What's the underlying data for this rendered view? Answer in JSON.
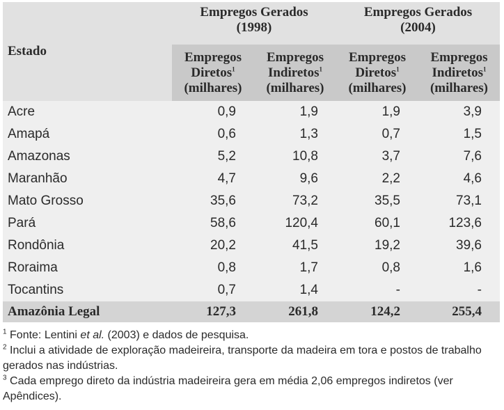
{
  "table": {
    "estado_header": "Estado",
    "group_headers": [
      {
        "line1": "Empregos Gerados",
        "line2": "(1998)"
      },
      {
        "line1": "Empregos Gerados",
        "line2": "(2004)"
      }
    ],
    "sub_headers": [
      {
        "line1": "Empregos",
        "line2": "Diretos",
        "sup": "1",
        "line3": "(milhares)"
      },
      {
        "line1": "Empregos",
        "line2": "Indiretos",
        "sup": "1",
        "line3": "(milhares)"
      },
      {
        "line1": "Empregos",
        "line2": "Diretos",
        "sup": "1",
        "line3": "(milhares)"
      },
      {
        "line1": "Empregos",
        "line2": "Indiretos",
        "sup": "1",
        "line3": "(milhares)"
      }
    ],
    "rows": [
      {
        "estado": "Acre",
        "d1998": "0,9",
        "i1998": "1,9",
        "d2004": "1,9",
        "i2004": "3,9"
      },
      {
        "estado": "Amapá",
        "d1998": "0,6",
        "i1998": "1,3",
        "d2004": "0,7",
        "i2004": "1,5"
      },
      {
        "estado": "Amazonas",
        "d1998": "5,2",
        "i1998": "10,8",
        "d2004": "3,7",
        "i2004": "7,6"
      },
      {
        "estado": "Maranhão",
        "d1998": "4,7",
        "i1998": "9,6",
        "d2004": "2,2",
        "i2004": "4,6"
      },
      {
        "estado": "Mato Grosso",
        "d1998": "35,6",
        "i1998": "73,2",
        "d2004": "35,5",
        "i2004": "73,1"
      },
      {
        "estado": "Pará",
        "d1998": "58,6",
        "i1998": "120,4",
        "d2004": "60,1",
        "i2004": "123,6"
      },
      {
        "estado": "Rondônia",
        "d1998": "20,2",
        "i1998": "41,5",
        "d2004": "19,2",
        "i2004": "39,6"
      },
      {
        "estado": "Roraima",
        "d1998": "0,8",
        "i1998": "1,7",
        "d2004": "0,8",
        "i2004": "1,6"
      },
      {
        "estado": "Tocantins",
        "d1998": "0,7",
        "i1998": "1,4",
        "d2004": "-",
        "i2004": "-"
      }
    ],
    "total": {
      "estado": "Amazônia Legal",
      "d1998": "127,3",
      "i1998": "261,8",
      "d2004": "124,2",
      "i2004": "255,4"
    }
  },
  "notes": [
    {
      "num": "1",
      "pre": "Fonte: Lentini ",
      "em": "et al.",
      "post": " (2003) e dados de pesquisa."
    },
    {
      "num": "2",
      "pre": "Inclui a atividade de exploração madeireira, transporte da madeira em tora e postos de trabalho gerados nas indústrias.",
      "em": "",
      "post": ""
    },
    {
      "num": "3",
      "pre": "Cada emprego direto da indústria madeireira gera em média 2,06 empregos indiretos (ver Apêndices).",
      "em": "",
      "post": ""
    }
  ]
}
